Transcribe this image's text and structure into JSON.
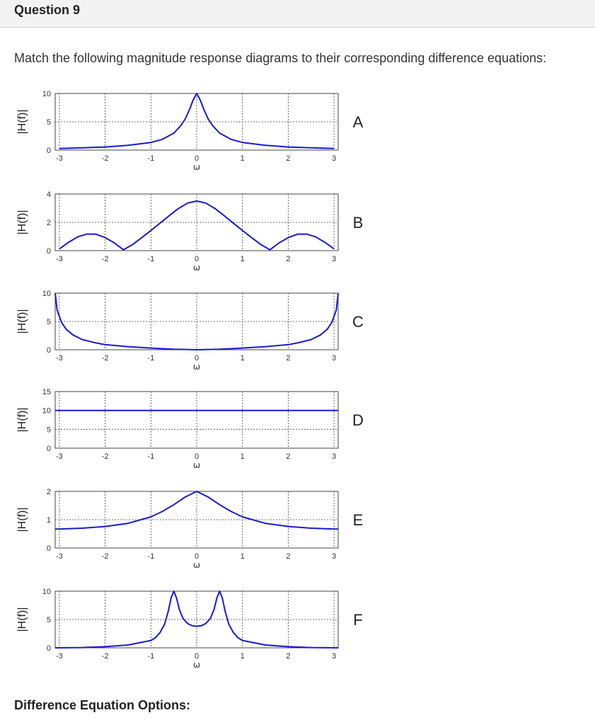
{
  "question": {
    "title": "Question 9"
  },
  "prompt": "Match the following magnitude response diagrams to their corresponding difference equations:",
  "footer": "Difference Equation Options:",
  "colors": {
    "curve": "#1a1acc",
    "grid": "#444444",
    "axis_text": "#333333"
  },
  "chart_data": [
    {
      "type": "line",
      "label": "A",
      "ylabel": "|H(f)|",
      "xlabel": "ω",
      "xlim": [
        -3,
        3
      ],
      "ylim": [
        0,
        10
      ],
      "xticks": [
        -3,
        -2,
        -1,
        0,
        1,
        2,
        3
      ],
      "yticks": [
        0,
        5,
        10
      ],
      "grid": true,
      "x": [
        -3,
        -2.5,
        -2,
        -1.5,
        -1,
        -0.75,
        -0.5,
        -0.35,
        -0.25,
        -0.15,
        -0.08,
        0,
        0.08,
        0.15,
        0.25,
        0.35,
        0.5,
        0.75,
        1,
        1.5,
        2,
        2.5,
        3
      ],
      "y": [
        0.28,
        0.4,
        0.55,
        0.85,
        1.35,
        1.9,
        3.0,
        4.3,
        5.5,
        7.3,
        8.8,
        10.0,
        8.8,
        7.3,
        5.5,
        4.3,
        3.0,
        1.9,
        1.35,
        0.85,
        0.55,
        0.4,
        0.28
      ]
    },
    {
      "type": "line",
      "label": "B",
      "ylabel": "|H(f)|",
      "xlabel": "ω",
      "xlim": [
        -3,
        3
      ],
      "ylim": [
        0,
        4
      ],
      "xticks": [
        -3,
        -2,
        -1,
        0,
        1,
        2,
        3
      ],
      "yticks": [
        0,
        2,
        4
      ],
      "grid": true,
      "x": [
        -3,
        -2.8,
        -2.6,
        -2.4,
        -2.2,
        -2.0,
        -1.8,
        -1.6,
        -1.4,
        -1.2,
        -1.0,
        -0.8,
        -0.6,
        -0.4,
        -0.2,
        0,
        0.2,
        0.4,
        0.6,
        0.8,
        1.0,
        1.2,
        1.4,
        1.6,
        1.8,
        2.0,
        2.2,
        2.4,
        2.6,
        2.8,
        3.0
      ],
      "y": [
        0.12,
        0.59,
        0.97,
        1.17,
        1.16,
        0.92,
        0.55,
        0.06,
        0.43,
        0.92,
        1.42,
        1.94,
        2.47,
        2.97,
        3.36,
        3.5,
        3.36,
        2.97,
        2.47,
        1.94,
        1.42,
        0.92,
        0.43,
        0.06,
        0.55,
        0.92,
        1.16,
        1.17,
        0.97,
        0.59,
        0.12
      ]
    },
    {
      "type": "line",
      "label": "C",
      "ylabel": "|H(f)|",
      "xlabel": "ω",
      "xlim": [
        -3,
        3
      ],
      "ylim": [
        0,
        10
      ],
      "xticks": [
        -3,
        -2,
        -1,
        0,
        1,
        2,
        3
      ],
      "yticks": [
        0,
        5,
        10
      ],
      "grid": true,
      "x": [
        -3.14,
        -3.05,
        -2.95,
        -2.85,
        -2.7,
        -2.5,
        -2.2,
        -2,
        -1.5,
        -1,
        -0.5,
        0,
        0.5,
        1,
        1.5,
        2,
        2.2,
        2.5,
        2.7,
        2.85,
        2.95,
        3.05,
        3.14
      ],
      "y": [
        10.0,
        7.0,
        4.8,
        3.6,
        2.6,
        1.8,
        1.2,
        0.9,
        0.55,
        0.3,
        0.1,
        0.0,
        0.1,
        0.3,
        0.55,
        0.9,
        1.2,
        1.8,
        2.6,
        3.6,
        4.8,
        7.0,
        10.0
      ]
    },
    {
      "type": "line",
      "label": "D",
      "ylabel": "|H(f)|",
      "xlabel": "ω",
      "xlim": [
        -3,
        3
      ],
      "ylim": [
        0,
        15
      ],
      "xticks": [
        -3,
        -2,
        -1,
        0,
        1,
        2,
        3
      ],
      "yticks": [
        0,
        5,
        10,
        15
      ],
      "grid": true,
      "x": [
        -3.14,
        3.14
      ],
      "y": [
        10,
        10
      ]
    },
    {
      "type": "line",
      "label": "E",
      "ylabel": "|H(f)|",
      "xlabel": "ω",
      "xlim": [
        -3,
        3
      ],
      "ylim": [
        0,
        2
      ],
      "xticks": [
        -3,
        -2,
        -1,
        0,
        1,
        2,
        3
      ],
      "yticks": [
        0,
        1,
        2
      ],
      "grid": true,
      "x": [
        -3.14,
        -3,
        -2.5,
        -2,
        -1.5,
        -1,
        -0.75,
        -0.5,
        -0.25,
        0,
        0.25,
        0.5,
        0.75,
        1,
        1.5,
        2,
        2.5,
        3,
        3.14
      ],
      "y": [
        0.67,
        0.67,
        0.7,
        0.76,
        0.87,
        1.1,
        1.29,
        1.53,
        1.8,
        2.0,
        1.8,
        1.53,
        1.29,
        1.1,
        0.87,
        0.76,
        0.7,
        0.67,
        0.67
      ]
    },
    {
      "type": "line",
      "label": "F",
      "ylabel": "|H(f)|",
      "xlabel": "ω",
      "xlim": [
        -3,
        3
      ],
      "ylim": [
        0,
        10
      ],
      "xticks": [
        -3,
        -2,
        -1,
        0,
        1,
        2,
        3
      ],
      "yticks": [
        0,
        5,
        10
      ],
      "grid": true,
      "x": [
        -3.14,
        -2.5,
        -2,
        -1.5,
        -1,
        -0.9,
        -0.8,
        -0.7,
        -0.62,
        -0.56,
        -0.5,
        -0.44,
        -0.38,
        -0.3,
        -0.2,
        -0.1,
        0,
        0.1,
        0.2,
        0.3,
        0.38,
        0.44,
        0.5,
        0.56,
        0.62,
        0.7,
        0.8,
        0.9,
        1,
        1.5,
        2,
        2.5,
        3.14
      ],
      "y": [
        0.0,
        0.05,
        0.2,
        0.5,
        1.3,
        1.8,
        2.7,
        4.2,
        6.5,
        8.8,
        10.0,
        8.8,
        6.8,
        5.2,
        4.3,
        3.9,
        3.8,
        3.9,
        4.3,
        5.2,
        6.8,
        8.8,
        10.0,
        8.8,
        6.5,
        4.2,
        2.7,
        1.8,
        1.3,
        0.5,
        0.2,
        0.05,
        0.0
      ]
    }
  ]
}
